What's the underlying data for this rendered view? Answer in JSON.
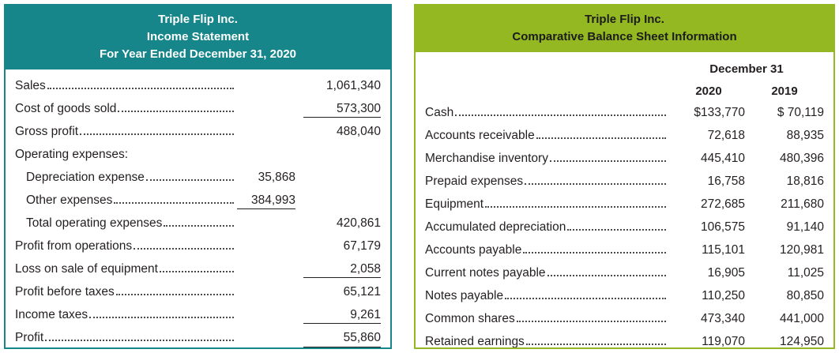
{
  "income_statement": {
    "header": {
      "company": "Triple Flip Inc.",
      "title": "Income Statement",
      "period": "For Year Ended December 31, 2020"
    },
    "rows": [
      {
        "label": "Sales",
        "col1": "",
        "col2": "1,061,340"
      },
      {
        "label": "Cost of goods sold",
        "col1": "",
        "col2": "573,300"
      },
      {
        "label": "Gross profit",
        "col1": "",
        "col2": "488,040"
      },
      {
        "label": "Operating expenses:",
        "col1": "",
        "col2": ""
      },
      {
        "label": "Depreciation expense",
        "col1": "35,868",
        "col2": ""
      },
      {
        "label": "Other expenses",
        "col1": "384,993",
        "col2": ""
      },
      {
        "label": "Total operating expenses",
        "col1": "",
        "col2": "420,861"
      },
      {
        "label": "Profit from operations",
        "col1": "",
        "col2": "67,179"
      },
      {
        "label": "Loss on sale of equipment",
        "col1": "",
        "col2": "2,058"
      },
      {
        "label": "Profit before taxes",
        "col1": "",
        "col2": "65,121"
      },
      {
        "label": "Income taxes",
        "col1": "",
        "col2": "9,261"
      },
      {
        "label": "Profit",
        "col1": "",
        "col2": "55,860"
      }
    ]
  },
  "balance_sheet": {
    "header": {
      "company": "Triple Flip Inc.",
      "title": "Comparative Balance Sheet Information"
    },
    "date_header": "December 31",
    "col_headers": [
      "2020",
      "2019"
    ],
    "rows": [
      {
        "label": "Cash",
        "y2020": "$133,770",
        "y2019": "$ 70,119"
      },
      {
        "label": "Accounts receivable",
        "y2020": "72,618",
        "y2019": "88,935"
      },
      {
        "label": "Merchandise inventory",
        "y2020": "445,410",
        "y2019": "480,396"
      },
      {
        "label": "Prepaid expenses",
        "y2020": "16,758",
        "y2019": "18,816"
      },
      {
        "label": "Equipment",
        "y2020": "272,685",
        "y2019": "211,680"
      },
      {
        "label": "Accumulated depreciation",
        "y2020": "106,575",
        "y2019": "91,140"
      },
      {
        "label": "Accounts payable",
        "y2020": "115,101",
        "y2019": "120,981"
      },
      {
        "label": "Current notes payable",
        "y2020": "16,905",
        "y2019": "11,025"
      },
      {
        "label": "Notes payable",
        "y2020": "110,250",
        "y2019": "80,850"
      },
      {
        "label": "Common shares",
        "y2020": "473,340",
        "y2019": "441,000"
      },
      {
        "label": "Retained earnings",
        "y2020": "119,070",
        "y2019": "124,950"
      }
    ]
  },
  "colors": {
    "income_header_bg": "#16868b",
    "balance_header_bg": "#93b822",
    "text": "#231f20"
  }
}
